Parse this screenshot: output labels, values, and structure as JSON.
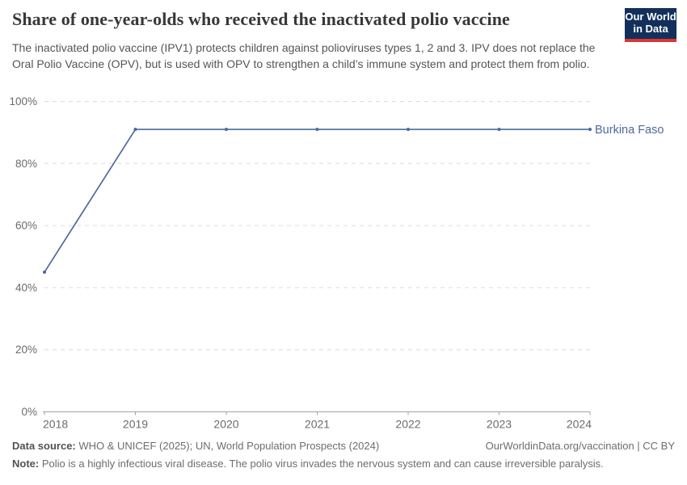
{
  "header": {
    "title": "Share of one-year-olds who received the inactivated polio vaccine",
    "subtitle": "The inactivated polio vaccine (IPV1) protects children against polioviruses types 1, 2 and 3. IPV does not replace the Oral Polio Vaccine (OPV), but is used with OPV to strengthen a child’s immune system and protect them from polio.",
    "logo": {
      "line1": "Our World",
      "line2": "in Data",
      "bg_color": "#12305b",
      "accent_color": "#d93832"
    }
  },
  "chart_data": {
    "type": "line",
    "title": "Share of one-year-olds who received the inactivated polio vaccine",
    "x": [
      2018,
      2019,
      2020,
      2021,
      2022,
      2023,
      2024
    ],
    "series": [
      {
        "name": "Burkina Faso",
        "color": "#4c6a9c",
        "values": [
          45,
          91,
          91,
          91,
          91,
          91,
          91
        ]
      }
    ],
    "x_ticks": [
      "2018",
      "2019",
      "2020",
      "2021",
      "2022",
      "2023",
      "2024"
    ],
    "y_ticks": [
      0,
      20,
      40,
      60,
      80,
      100
    ],
    "y_tick_suffix": "%",
    "ylim": [
      0,
      100
    ],
    "xlim": [
      2018,
      2024
    ],
    "grid": "horizontal-dashed",
    "legend_position": "end-of-line-label",
    "grid_color": "#dcdcdc",
    "axis_color": "#a3a3a3",
    "tick_label_color": "#6b6b6b"
  },
  "footer": {
    "datasource_label": "Data source:",
    "datasource_value": " WHO & UNICEF (2025); UN, World Population Prospects (2024)",
    "link": "OurWorldinData.org/vaccination | CC BY",
    "note_label": "Note:",
    "note_value": " Polio is a highly infectious viral disease. The polio virus invades the nervous system and can cause irreversible paralysis."
  }
}
